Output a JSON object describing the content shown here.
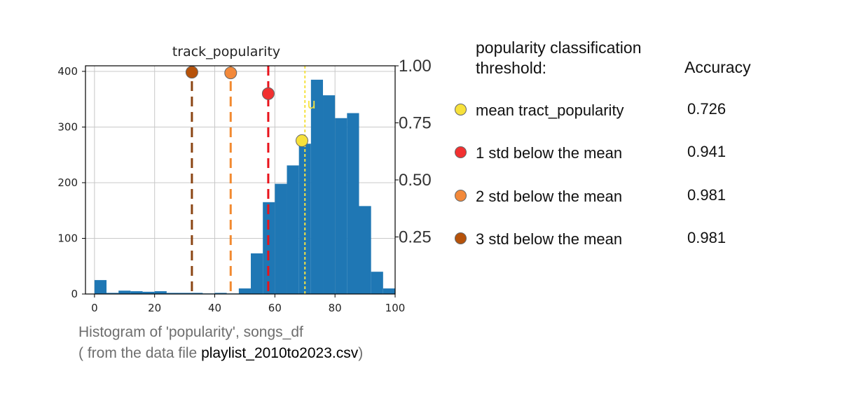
{
  "chart_data": {
    "type": "bar",
    "title": "track_popularity",
    "bins_x": [
      0,
      4,
      8,
      12,
      16,
      20,
      24,
      28,
      32,
      36,
      40,
      44,
      48,
      52,
      56,
      60,
      64,
      68,
      72,
      76,
      80,
      84,
      88,
      92,
      96
    ],
    "values": [
      25,
      2,
      6,
      5,
      4,
      5,
      2,
      2,
      2,
      1,
      2,
      1,
      10,
      73,
      165,
      198,
      231,
      270,
      385,
      357,
      316,
      325,
      158,
      40,
      10
    ],
    "bar_color": "#1f77b4",
    "xlim": [
      -3,
      100
    ],
    "ylim": [
      0,
      410
    ],
    "x_ticks": [
      0,
      20,
      40,
      60,
      80,
      100
    ],
    "y_ticks": [
      0,
      100,
      200,
      300,
      400
    ],
    "right_ylim": [
      0,
      1.0
    ],
    "right_y_ticks": [
      "0.25",
      "0.50",
      "0.75",
      "1.00"
    ],
    "right_tick_values": [
      0.25,
      0.5,
      0.75,
      1.0
    ],
    "grid": true,
    "mean_line": {
      "x": 70,
      "label": "u",
      "color": "#f5e142"
    },
    "threshold_lines": [
      {
        "x": 57.8,
        "color": "#e8141c",
        "marker_y": 0.878
      },
      {
        "x": 45.3,
        "color": "#f28a30",
        "marker_y": 0.969
      },
      {
        "x": 32.4,
        "color": "#8b4513",
        "marker_y": 0.972
      }
    ],
    "mean_marker": {
      "x": 69,
      "y": 0.672,
      "color": "#f7e13b"
    },
    "threshold_marker_colors": [
      "#f23030",
      "#f3893a",
      "#b6520a"
    ]
  },
  "caption": {
    "line1": "Histogram of 'popularity', songs_df",
    "line2_prefix": "( from the data file ",
    "line2_file": "playlist_2010to2023.csv",
    "line2_suffix": ")"
  },
  "legend": {
    "title_line1": "popularity classification",
    "title_line2": "threshold:",
    "accuracy_header": "Accuracy",
    "rows": [
      {
        "label": "mean tract_popularity",
        "accuracy": "0.726",
        "color": "#f7e13b"
      },
      {
        "label": "1 std below the mean",
        "accuracy": "0.941",
        "color": "#f23030"
      },
      {
        "label": "2 std below the mean",
        "accuracy": "0.981",
        "color": "#f3893a"
      },
      {
        "label": "3 std below the mean",
        "accuracy": "0.981",
        "color": "#b6520a"
      }
    ]
  }
}
